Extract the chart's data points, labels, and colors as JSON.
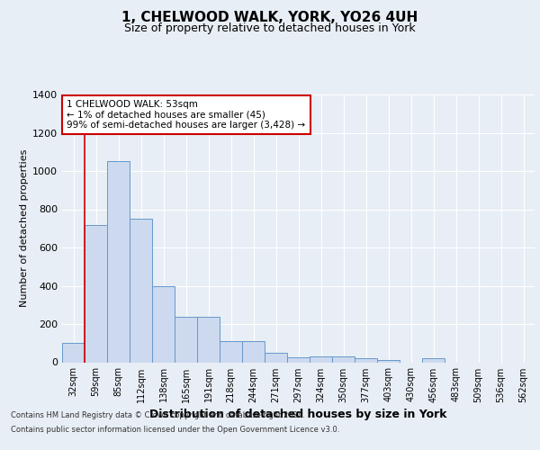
{
  "title": "1, CHELWOOD WALK, YORK, YO26 4UH",
  "subtitle": "Size of property relative to detached houses in York",
  "xlabel": "Distribution of detached houses by size in York",
  "ylabel": "Number of detached properties",
  "footer_line1": "Contains HM Land Registry data © Crown copyright and database right 2024.",
  "footer_line2": "Contains public sector information licensed under the Open Government Licence v3.0.",
  "annotation_title": "1 CHELWOOD WALK: 53sqm",
  "annotation_line1": "← 1% of detached houses are smaller (45)",
  "annotation_line2": "99% of semi-detached houses are larger (3,428) →",
  "categories": [
    "32sqm",
    "59sqm",
    "85sqm",
    "112sqm",
    "138sqm",
    "165sqm",
    "191sqm",
    "218sqm",
    "244sqm",
    "271sqm",
    "297sqm",
    "324sqm",
    "350sqm",
    "377sqm",
    "403sqm",
    "430sqm",
    "456sqm",
    "483sqm",
    "509sqm",
    "536sqm",
    "562sqm"
  ],
  "values": [
    100,
    720,
    1050,
    750,
    400,
    240,
    240,
    110,
    110,
    50,
    25,
    30,
    30,
    20,
    10,
    0,
    20,
    0,
    0,
    0,
    0
  ],
  "bar_color": "#ccd9ee",
  "bar_edge_color": "#6699cc",
  "ylim": [
    0,
    1400
  ],
  "yticks": [
    0,
    200,
    400,
    600,
    800,
    1000,
    1200,
    1400
  ],
  "background_color": "#e8eef5",
  "plot_bg_color": "#e8eef5",
  "grid_color": "#ffffff",
  "title_fontsize": 11,
  "subtitle_fontsize": 9,
  "annotation_box_color": "#ffffff",
  "annotation_box_edge": "#cc0000",
  "property_line_color": "#cc0000",
  "red_line_index": 0.93
}
